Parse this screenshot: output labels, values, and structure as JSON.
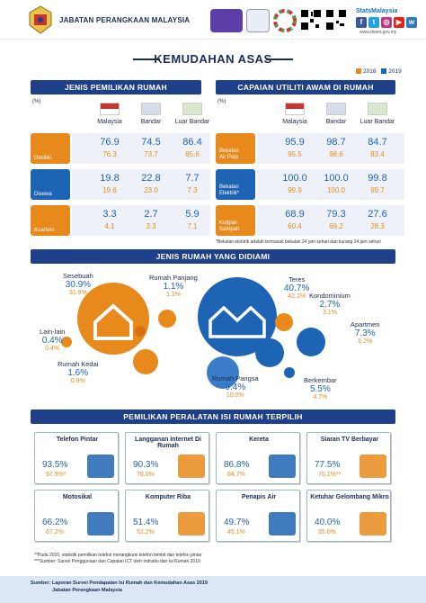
{
  "header": {
    "department": "JABATAN PERANGKAAN MALAYSIA",
    "stats_brand": "StatsMalaysia",
    "stats_url": "www.dosm.gov.my"
  },
  "title": "KEMUDAHAN ASAS",
  "legend": {
    "y2016": "2016",
    "y2019": "2019",
    "color2016": "#e8891c",
    "color2019": "#1e64b5"
  },
  "ownership": {
    "heading": "JENIS PEMILIKAN RUMAH",
    "unit": "(%)",
    "columns": [
      "Malaysia",
      "Bandar",
      "Luar Bandar"
    ],
    "rows": [
      {
        "label": "Dimiliki",
        "icon": "house-icon",
        "v2019": [
          "76.9",
          "74.5",
          "86.4"
        ],
        "v2016": [
          "76.3",
          "73.7",
          "85.6"
        ]
      },
      {
        "label": "Disewa",
        "icon": "rent-icon",
        "v2019": [
          "19.8",
          "22.8",
          "7.7"
        ],
        "v2016": [
          "19.6",
          "23.0",
          "7.3"
        ]
      },
      {
        "label": "Kuarters",
        "icon": "quarters-icon",
        "v2019": [
          "3.3",
          "2.7",
          "5.9"
        ],
        "v2016": [
          "4.1",
          "3.3",
          "7.1"
        ]
      }
    ]
  },
  "utilities": {
    "heading": "CAPAIAN UTILITI AWAM DI RUMAH",
    "unit": "(%)",
    "columns": [
      "Malaysia",
      "Bandar",
      "Luar Bandar"
    ],
    "rows": [
      {
        "label1": "Bekalan",
        "label2": "Air Paip",
        "icon": "water-tap-icon",
        "v2019": [
          "95.9",
          "98.7",
          "84.7"
        ],
        "v2016": [
          "95.5",
          "98.6",
          "83.4"
        ]
      },
      {
        "label1": "Bekalan",
        "label2": "Elektrik*",
        "icon": "bulb-icon",
        "v2019": [
          "100.0",
          "100.0",
          "99.8"
        ],
        "v2016": [
          "99.9",
          "100.0",
          "99.7"
        ]
      },
      {
        "label1": "Kutipan",
        "label2": "Sampah",
        "icon": "garbage-icon",
        "v2019": [
          "68.9",
          "79.3",
          "27.6"
        ],
        "v2016": [
          "60.4",
          "69.2",
          "28.3"
        ]
      }
    ],
    "note": "*Bekalan elektrik adalah termasuk bekalan 24 jam sehari dan kurang 24 jam sehari"
  },
  "house_types": {
    "heading": "JENIS RUMAH YANG DIDIAMI",
    "items": [
      {
        "label": "Sesebuah",
        "v2019": "30.9%",
        "v2016": "31.9%"
      },
      {
        "label": "Rumah Panjang",
        "v2019": "1.1%",
        "v2016": "1.1%"
      },
      {
        "label": "Teres",
        "v2019": "40.7%",
        "v2016": "42.1%"
      },
      {
        "label": "Kondominium",
        "v2019": "2.7%",
        "v2016": "3.1%"
      },
      {
        "label": "Lain-lain",
        "v2019": "0.4%",
        "v2016": "0.4%"
      },
      {
        "label": "Apartmen",
        "v2019": "7.3%",
        "v2016": "6.2%"
      },
      {
        "label": "Rumah Kedai",
        "v2019": "1.6%",
        "v2016": "0.9%"
      },
      {
        "label": "Rumah Pangsa",
        "v2019": "9.4%",
        "v2016": "10.0%"
      },
      {
        "label": "Berkembar",
        "v2019": "5.5%",
        "v2016": "4.7%"
      }
    ]
  },
  "appliances": {
    "heading": "PEMILIKAN PERALATAN ISI RUMAH TERPILIH",
    "items": [
      {
        "label": "Telefon Pintar",
        "v2019": "93.5%",
        "v2016": "97.9%",
        "star": "*"
      },
      {
        "label": "Langganan Internet Di Rumah",
        "v2019": "90.3%",
        "v2016": "76.0%",
        "star": ""
      },
      {
        "label": "Kereta",
        "v2019": "86.8%",
        "v2016": "84.7%",
        "star": ""
      },
      {
        "label": "Siaran TV Berbayar",
        "v2019": "77.5%",
        "v2016": "70.1%",
        "star": "**"
      },
      {
        "label": "Motosikal",
        "v2019": "66.2%",
        "v2016": "67.2%",
        "star": ""
      },
      {
        "label": "Komputer Riba",
        "v2019": "51.4%",
        "v2016": "52.2%",
        "star": ""
      },
      {
        "label": "Penapis Air",
        "v2019": "49.7%",
        "v2016": "45.1%",
        "star": ""
      },
      {
        "label": "Ketuhar Gelombang Mikro",
        "v2019": "40.0%",
        "v2016": "35.6%",
        "star": ""
      }
    ],
    "note1": "**Pada 2016, statistik pemilikan telefon merangkumi telefon bimbit dan telefon pintar",
    "note2": "***Sumber: Survei Penggunaan dan Capaian ICT oleh Individu dan Isi Rumah 2019"
  },
  "footer": {
    "line1": "Sumber: Laporan Survei  Pendapatan Isi Rumah dan Kemudahan Asas 2019",
    "line2": "Jabatan Perangkaan Malaysia"
  }
}
